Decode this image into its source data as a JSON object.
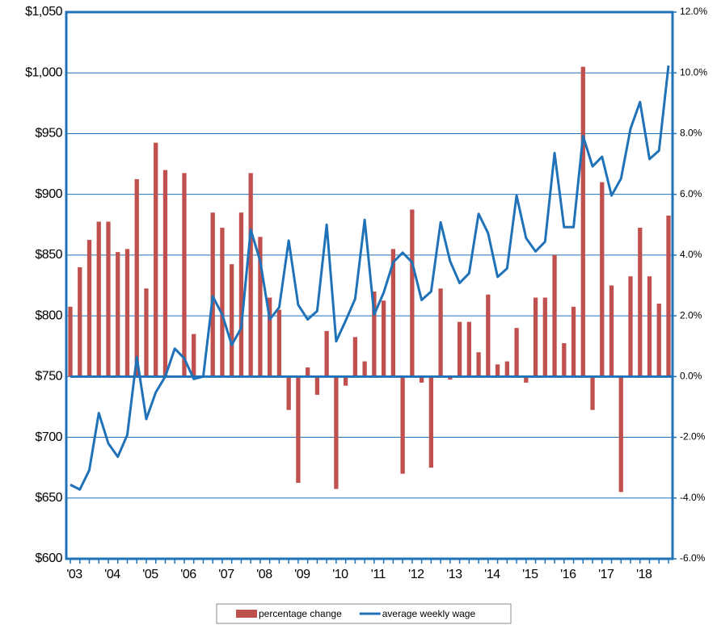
{
  "chart_data": {
    "type": "bar-line",
    "categories": [
      "'03",
      null,
      null,
      null,
      "'04",
      null,
      null,
      null,
      "'05",
      null,
      null,
      null,
      "'06",
      null,
      null,
      null,
      "'07",
      null,
      null,
      null,
      "'08",
      null,
      null,
      null,
      "'09",
      null,
      null,
      null,
      "'10",
      null,
      null,
      null,
      "'11",
      null,
      null,
      null,
      "'12",
      null,
      null,
      null,
      "'13",
      null,
      null,
      null,
      "'14",
      null,
      null,
      null,
      "'15",
      null,
      null,
      null,
      "'16",
      null,
      null,
      null,
      "'17",
      null,
      null,
      null,
      "'18",
      null,
      null,
      null
    ],
    "series": [
      {
        "name": "percentage change",
        "color": "#c0504d",
        "type": "bar",
        "axis": "y2",
        "values": [
          2.3,
          3.6,
          4.5,
          5.1,
          5.1,
          4.1,
          4.2,
          6.5,
          2.9,
          7.7,
          6.8,
          0,
          6.7,
          1.4,
          0,
          5.4,
          4.9,
          3.7,
          5.4,
          6.7,
          4.6,
          2.6,
          2.2,
          -1.1,
          -3.5,
          0.3,
          -0.6,
          1.5,
          -3.7,
          -0.3,
          1.3,
          0.5,
          2.8,
          2.5,
          4.2,
          -3.2,
          5.5,
          -0.2,
          -3.0,
          2.9,
          -0.1,
          1.8,
          1.8,
          0.8,
          2.7,
          0.4,
          0.5,
          1.6,
          -0.2,
          2.6,
          2.6,
          4.0,
          1.1,
          2.3,
          10.2,
          -1.1,
          6.4,
          3.0,
          -3.8,
          3.3,
          4.9,
          3.3,
          2.4,
          5.3
        ]
      },
      {
        "name": "average weekly wage",
        "color": "#1f72b8",
        "type": "line",
        "values": [
          661,
          657,
          673,
          720,
          695,
          684,
          702,
          766,
          715,
          737,
          750,
          773,
          765,
          748,
          750,
          816,
          801,
          776,
          790,
          871,
          845,
          797,
          807,
          862,
          809,
          797,
          804,
          875,
          779,
          796,
          814,
          879,
          801,
          819,
          844,
          852,
          844,
          813,
          820,
          877,
          845,
          827,
          835,
          884,
          868,
          832,
          839,
          899,
          864,
          853,
          861,
          934,
          873,
          873,
          948,
          923,
          931,
          899,
          913,
          954,
          976,
          929,
          936,
          1006
        ]
      }
    ],
    "ylim": [
      600,
      1050
    ],
    "yticks": [
      {
        "value": 600,
        "label": "$600"
      },
      {
        "value": 650,
        "label": "$650"
      },
      {
        "value": 700,
        "label": "$700"
      },
      {
        "value": 750,
        "label": "$750"
      },
      {
        "value": 800,
        "label": "$800"
      },
      {
        "value": 850,
        "label": "$850"
      },
      {
        "value": 900,
        "label": "$900"
      },
      {
        "value": 950,
        "label": "$950"
      },
      {
        "value": 1000,
        "label": "$1,000"
      },
      {
        "value": 1050,
        "label": "$1,050"
      }
    ],
    "y2lim": [
      -6,
      12
    ],
    "y2ticks": [
      {
        "value": -6,
        "label": "-6.0%"
      },
      {
        "value": -4,
        "label": "-4.0%"
      },
      {
        "value": -2,
        "label": "-2.0%"
      },
      {
        "value": 0,
        "label": "0.0%"
      },
      {
        "value": 2,
        "label": "2.0%"
      },
      {
        "value": 4,
        "label": "4.0%"
      },
      {
        "value": 6,
        "label": "6.0%"
      },
      {
        "value": 8,
        "label": "8.0%"
      },
      {
        "value": 10,
        "label": "10.0%"
      },
      {
        "value": 12,
        "label": "12.0%"
      }
    ],
    "grid": true,
    "legend": "bottom"
  }
}
